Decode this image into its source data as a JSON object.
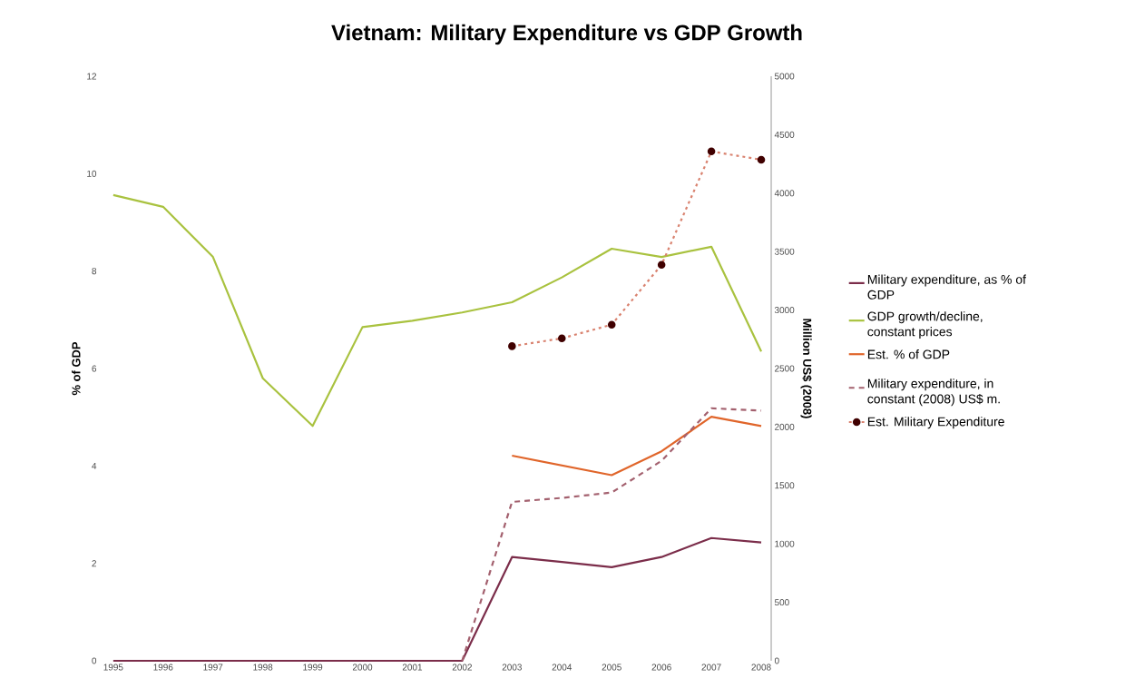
{
  "chart_data": {
    "type": "line",
    "title": "Vietnam: Military Expenditure vs GDP Growth",
    "ylabel": "% of GDP",
    "y2label": "Million US$ (2008)",
    "categories": [
      "1995",
      "1996",
      "1997",
      "1998",
      "1999",
      "2000",
      "2001",
      "2002",
      "2003",
      "2004",
      "2005",
      "2006",
      "2007",
      "2008"
    ],
    "ylim": [
      0,
      12
    ],
    "yticks": [
      0,
      2,
      4,
      6,
      8,
      10,
      12
    ],
    "y2lim": [
      0,
      5000
    ],
    "y2ticks": [
      0,
      500,
      1000,
      1500,
      2000,
      2500,
      3000,
      3500,
      4000,
      4500,
      5000
    ],
    "legend": "right",
    "grid": false,
    "series": [
      {
        "name": "Military expenditure, as % of GDP",
        "color": "#7b2d4a",
        "line_style": "solid",
        "marker": "none",
        "values": [
          0,
          0,
          0,
          0,
          0,
          0,
          0,
          0,
          2.13,
          2.03,
          1.92,
          2.13,
          2.52,
          2.43
        ]
      },
      {
        "name": "GDP growth/decline, constant prices",
        "color": "#a9c23f",
        "line_style": "solid",
        "marker": "none",
        "values": [
          9.56,
          9.32,
          8.29,
          5.8,
          4.82,
          6.85,
          6.98,
          7.15,
          7.36,
          7.87,
          8.46,
          8.29,
          8.5,
          6.35
        ]
      },
      {
        "name": "Est. % of GDP",
        "color": "#e0652a",
        "line_style": "solid",
        "marker": "none",
        "values": [
          null,
          null,
          null,
          null,
          null,
          null,
          null,
          null,
          4.21,
          4.01,
          3.81,
          4.3,
          5.01,
          4.82
        ]
      },
      {
        "name": "Military expenditure, in constant (2008) US$ m.",
        "color": "#a3606e",
        "line_style": "dashed",
        "marker": "none",
        "axis": "y2",
        "values": [
          null,
          null,
          null,
          null,
          null,
          null,
          null,
          0,
          1359,
          1393,
          1439,
          1710,
          2160,
          2140
        ]
      },
      {
        "name": "Est. Military Expenditure",
        "color": "#d9826f",
        "line_style": "dotted",
        "marker": "circle",
        "axis": "y2",
        "values": [
          null,
          null,
          null,
          null,
          null,
          null,
          null,
          null,
          2691,
          2758,
          2875,
          3387,
          4357,
          4286
        ]
      }
    ]
  }
}
